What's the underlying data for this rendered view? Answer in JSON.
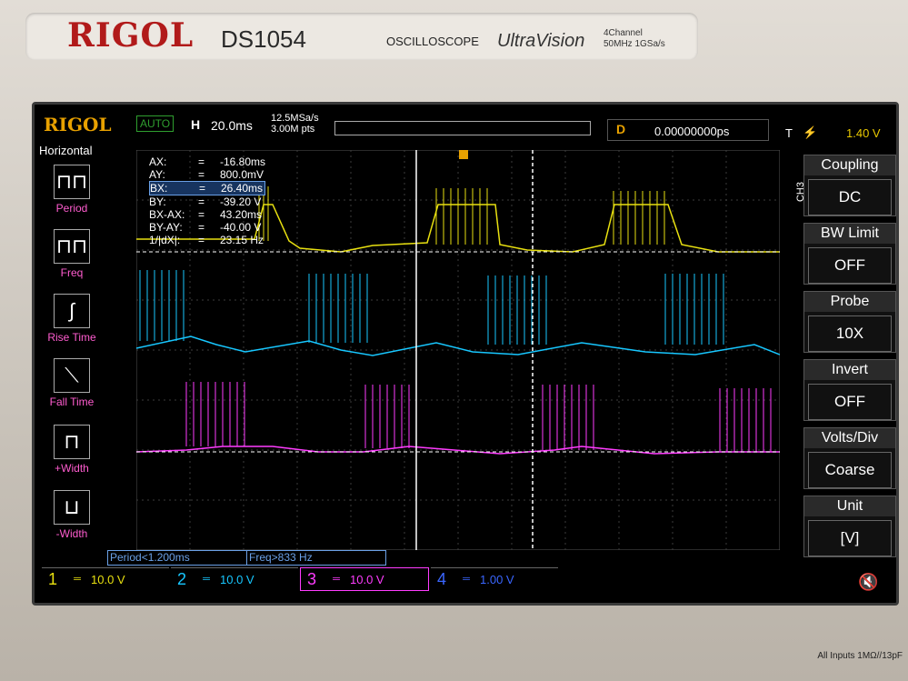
{
  "brand": {
    "logo": "RIGOL",
    "model": "DS1054",
    "type": "OSCILLOSCOPE",
    "ultravision": "UltraVision",
    "spec_line1": "4Channel",
    "spec_line2": "50MHz 1GSa/s"
  },
  "screen": {
    "logo": "RIGOL",
    "mode": "AUTO",
    "h_label": "H",
    "timebase": "20.0ms",
    "sample_rate": "12.5MSa/s",
    "memory_depth": "3.00M pts",
    "delay_label": "D",
    "delay_value": "0.00000000ps",
    "trigger_label": "T",
    "trigger_level": "1.40 V",
    "side_title": "Horizontal",
    "side_items": [
      {
        "label": "Period",
        "icon": "period-icon"
      },
      {
        "label": "Freq",
        "icon": "freq-icon"
      },
      {
        "label": "Rise Time",
        "icon": "rise-time-icon"
      },
      {
        "label": "Fall Time",
        "icon": "fall-time-icon"
      },
      {
        "label": "+Width",
        "icon": "pos-width-icon"
      },
      {
        "label": "-Width",
        "icon": "neg-width-icon"
      }
    ],
    "cursors": [
      {
        "name": "AX:",
        "eq": "=",
        "value": "-16.80ms"
      },
      {
        "name": "AY:",
        "eq": "=",
        "value": "800.0mV"
      },
      {
        "name": "BX:",
        "eq": "=",
        "value": "26.40ms"
      },
      {
        "name": "BY:",
        "eq": "=",
        "value": "-39.20 V"
      },
      {
        "name": "BX-AX:",
        "eq": "=",
        "value": "43.20ms"
      },
      {
        "name": "BY-AY:",
        "eq": "=",
        "value": "-40.00 V"
      },
      {
        "name": "1/|dX|:",
        "eq": "=",
        "value": "23.15 Hz"
      }
    ],
    "ch3_tag": "CH3",
    "right_menu": [
      {
        "title": "Coupling",
        "value": "DC"
      },
      {
        "title": "BW Limit",
        "value": "OFF"
      },
      {
        "title": "Probe",
        "value": "10X"
      },
      {
        "title": "Invert",
        "value": "OFF"
      },
      {
        "title": "Volts/Div",
        "value": "Coarse"
      },
      {
        "title": "Unit",
        "value": "[V]"
      }
    ],
    "status_period": "Period<1.200ms",
    "status_freq": "Freq>833 Hz",
    "channels": [
      {
        "num": "1",
        "value": "10.0 V",
        "color": "#e8e010"
      },
      {
        "num": "2",
        "value": "10.0 V",
        "color": "#17c7ff"
      },
      {
        "num": "3",
        "value": "10.0 V",
        "color": "#ff3cff"
      },
      {
        "num": "4",
        "value": "1.00 V",
        "color": "#3a66ff"
      }
    ],
    "colors": {
      "ch1": "#e8e010",
      "ch2": "#17c7ff",
      "ch3": "#ff3cff",
      "accent": "#e8a100"
    }
  },
  "footer_note": "All Inputs 1MΩ//13pF"
}
